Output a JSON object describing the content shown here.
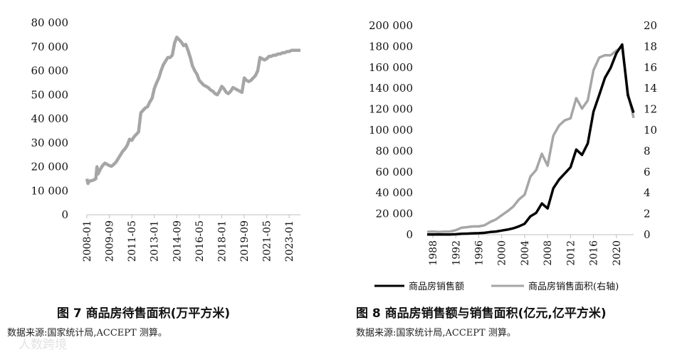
{
  "figures": [
    {
      "caption": "图 7  商品房待售面积(万平方米)",
      "source": "数据来源:国家统计局,ACCEPT 测算。"
    },
    {
      "caption": "图 8  商品房销售额与销售面积(亿元,亿平方米)",
      "source": "数据来源:国家统计局,ACCEPT 测算。"
    }
  ],
  "watermark": "人数跨境",
  "chart_data": [
    {
      "type": "line",
      "title": "",
      "y_tick_labels": [
        "0",
        "10 000",
        "20 000",
        "30 000",
        "40 000",
        "50 000",
        "60 000",
        "70 000",
        "80 000"
      ],
      "x_tick_labels": [
        "2008-01",
        "2009-09",
        "2011-05",
        "2013-01",
        "2014-09",
        "2016-05",
        "2018-01",
        "2019-09",
        "2021-05",
        "2023-01"
      ],
      "ylim": [
        0,
        80000
      ],
      "grid": false,
      "color": "#a6a6a6",
      "series": [
        {
          "x": [
            "2008-01",
            "2008-02",
            "2008-03",
            "2008-05",
            "2008-07",
            "2008-09",
            "2008-10",
            "2008-11",
            "2009-01",
            "2009-03",
            "2009-05",
            "2009-07",
            "2009-09",
            "2009-11",
            "2010-01",
            "2010-03",
            "2010-05",
            "2010-07",
            "2010-09",
            "2010-11",
            "2011-01",
            "2011-03",
            "2011-05",
            "2011-07",
            "2011-09",
            "2011-11",
            "2012-01",
            "2012-03",
            "2012-05",
            "2012-07",
            "2012-09",
            "2012-11",
            "2013-01",
            "2013-03",
            "2013-05",
            "2013-07",
            "2013-09",
            "2013-11",
            "2014-01",
            "2014-03",
            "2014-05",
            "2014-07",
            "2014-09",
            "2014-11",
            "2015-01",
            "2015-03",
            "2015-05",
            "2015-07",
            "2015-09",
            "2015-11",
            "2016-01",
            "2016-03",
            "2016-05",
            "2016-07",
            "2016-09",
            "2016-11",
            "2017-01",
            "2017-03",
            "2017-05",
            "2017-07",
            "2017-09",
            "2017-11",
            "2018-01",
            "2018-03",
            "2018-05",
            "2018-07",
            "2018-09",
            "2018-11",
            "2019-01",
            "2019-03",
            "2019-05",
            "2019-07",
            "2019-09",
            "2019-11",
            "2020-01",
            "2020-03",
            "2020-05",
            "2020-07",
            "2020-09",
            "2020-11",
            "2021-01",
            "2021-03",
            "2021-05",
            "2021-07",
            "2021-09",
            "2021-11",
            "2022-01",
            "2022-03",
            "2022-05",
            "2022-07",
            "2022-09",
            "2022-11",
            "2023-01",
            "2023-03",
            "2023-05",
            "2023-07",
            "2023-09",
            "2023-11"
          ],
          "values": [
            15000,
            13000,
            14000,
            14200,
            14500,
            15000,
            20000,
            17000,
            19000,
            20500,
            21500,
            21000,
            20500,
            20200,
            21000,
            22000,
            23500,
            25000,
            26500,
            27500,
            29000,
            31500,
            31000,
            32500,
            33500,
            34500,
            42500,
            43500,
            44500,
            45000,
            47000,
            48500,
            52500,
            55000,
            57000,
            60000,
            62500,
            64000,
            65500,
            65500,
            66500,
            71500,
            74000,
            73000,
            72000,
            70500,
            71000,
            68500,
            65500,
            62000,
            60000,
            58500,
            56000,
            55000,
            54000,
            53500,
            53000,
            52000,
            51500,
            50500,
            50000,
            51500,
            53500,
            52500,
            51000,
            50500,
            51500,
            53000,
            52500,
            52000,
            51500,
            51000,
            57000,
            56000,
            55500,
            56000,
            57000,
            58000,
            60000,
            65500,
            65000,
            64500,
            65000,
            66000,
            66000,
            66500,
            66500,
            67000,
            67000,
            67500,
            67500,
            68000,
            68000,
            68500,
            68500,
            68500,
            68500,
            68500
          ]
        }
      ]
    },
    {
      "type": "line",
      "title": "",
      "x_tick_labels": [
        "1988",
        "1992",
        "1996",
        "2000",
        "2004",
        "2008",
        "2012",
        "2016",
        "2020"
      ],
      "y_left_tick_labels": [
        "0",
        "20 000",
        "40 000",
        "60 000",
        "80 000",
        "100 000",
        "120 000",
        "140 000",
        "160 000",
        "180 000",
        "200 000"
      ],
      "y_right_tick_labels": [
        "0",
        "2",
        "4",
        "6",
        "8",
        "10",
        "12",
        "14",
        "16",
        "18",
        "20"
      ],
      "ylim_left": [
        0,
        200000
      ],
      "ylim_right": [
        0,
        20
      ],
      "grid": false,
      "legend_position": "bottom",
      "x": [
        1987,
        1988,
        1989,
        1990,
        1991,
        1992,
        1993,
        1994,
        1995,
        1996,
        1997,
        1998,
        1999,
        2000,
        2001,
        2002,
        2003,
        2004,
        2005,
        2006,
        2007,
        2008,
        2009,
        2010,
        2011,
        2012,
        2013,
        2014,
        2015,
        2016,
        2017,
        2018,
        2019,
        2020,
        2021,
        2022,
        2023
      ],
      "series": [
        {
          "name": "商品房销售额",
          "axis": "left",
          "color": "#000000",
          "values": [
            110,
            120,
            140,
            200,
            230,
            430,
            860,
            1020,
            1260,
            1430,
            1800,
            2510,
            2990,
            3940,
            4860,
            6030,
            7960,
            10380,
            17580,
            20830,
            29890,
            25070,
            44360,
            52720,
            58590,
            64460,
            81430,
            76290,
            87280,
            117630,
            133700,
            149970,
            159730,
            173610,
            181930,
            133310,
            116620
          ]
        },
        {
          "name": "商品房销售面积(右轴)",
          "axis": "right",
          "color": "#a6a6a6",
          "values": [
            0.27,
            0.3,
            0.25,
            0.29,
            0.3,
            0.43,
            0.67,
            0.72,
            0.79,
            0.79,
            0.9,
            1.22,
            1.46,
            1.86,
            2.24,
            2.68,
            3.37,
            3.82,
            5.55,
            6.19,
            7.74,
            6.6,
            9.47,
            10.44,
            10.94,
            11.13,
            13.06,
            12.06,
            12.85,
            15.73,
            16.94,
            17.17,
            17.16,
            17.61,
            17.94,
            13.58,
            11.17
          ]
        }
      ]
    }
  ]
}
